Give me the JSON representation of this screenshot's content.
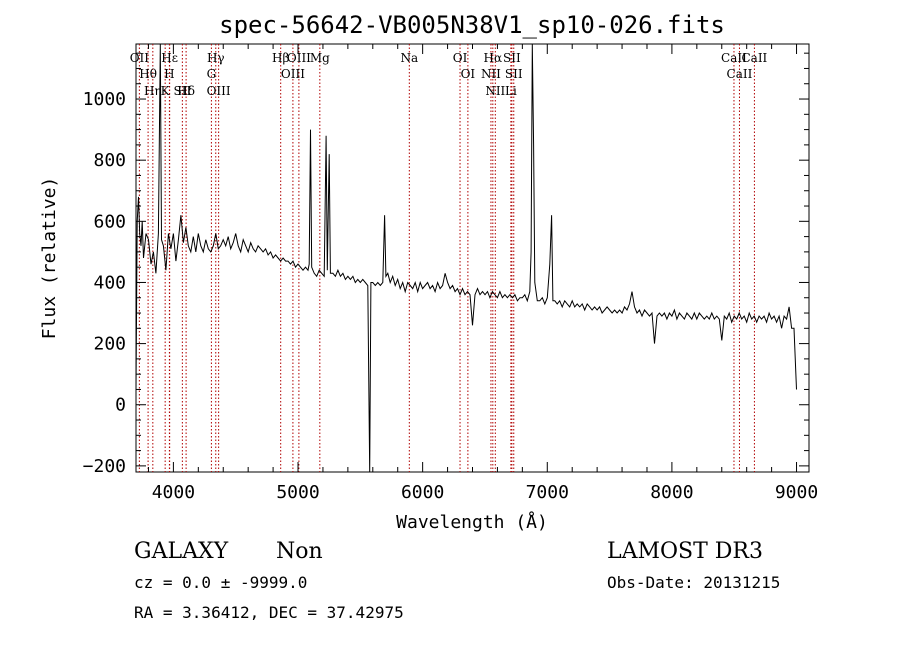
{
  "chart_data": {
    "type": "line",
    "title": "spec-56642-VB005N38V1_sp10-026.fits",
    "xlabel": "Wavelength (Å)",
    "ylabel": "Flux (relative)",
    "xlim": [
      3700,
      9100
    ],
    "ylim": [
      -220,
      1180
    ],
    "xticks": [
      4000,
      5000,
      6000,
      7000,
      8000,
      9000
    ],
    "yticks": [
      -200,
      0,
      200,
      400,
      600,
      800,
      1000
    ],
    "grid": false,
    "spectrum": [
      [
        3700,
        50
      ],
      [
        3710,
        600
      ],
      [
        3720,
        680
      ],
      [
        3730,
        560
      ],
      [
        3740,
        520
      ],
      [
        3750,
        600
      ],
      [
        3760,
        480
      ],
      [
        3780,
        560
      ],
      [
        3800,
        540
      ],
      [
        3820,
        460
      ],
      [
        3840,
        500
      ],
      [
        3860,
        430
      ],
      [
        3880,
        560
      ],
      [
        3895,
        1180
      ],
      [
        3905,
        540
      ],
      [
        3920,
        520
      ],
      [
        3940,
        440
      ],
      [
        3960,
        560
      ],
      [
        3980,
        510
      ],
      [
        4000,
        560
      ],
      [
        4020,
        470
      ],
      [
        4040,
        540
      ],
      [
        4060,
        620
      ],
      [
        4080,
        530
      ],
      [
        4100,
        580
      ],
      [
        4120,
        520
      ],
      [
        4140,
        500
      ],
      [
        4160,
        550
      ],
      [
        4180,
        500
      ],
      [
        4200,
        560
      ],
      [
        4220,
        520
      ],
      [
        4240,
        500
      ],
      [
        4260,
        540
      ],
      [
        4280,
        510
      ],
      [
        4300,
        500
      ],
      [
        4320,
        520
      ],
      [
        4340,
        560
      ],
      [
        4360,
        510
      ],
      [
        4380,
        520
      ],
      [
        4400,
        540
      ],
      [
        4420,
        520
      ],
      [
        4440,
        550
      ],
      [
        4460,
        510
      ],
      [
        4480,
        530
      ],
      [
        4500,
        560
      ],
      [
        4520,
        520
      ],
      [
        4540,
        500
      ],
      [
        4560,
        540
      ],
      [
        4580,
        520
      ],
      [
        4600,
        500
      ],
      [
        4620,
        530
      ],
      [
        4640,
        510
      ],
      [
        4660,
        500
      ],
      [
        4680,
        520
      ],
      [
        4700,
        510
      ],
      [
        4720,
        500
      ],
      [
        4740,
        510
      ],
      [
        4760,
        490
      ],
      [
        4780,
        500
      ],
      [
        4800,
        480
      ],
      [
        4820,
        490
      ],
      [
        4840,
        480
      ],
      [
        4860,
        470
      ],
      [
        4880,
        480
      ],
      [
        4900,
        470
      ],
      [
        4920,
        470
      ],
      [
        4940,
        460
      ],
      [
        4960,
        470
      ],
      [
        4980,
        450
      ],
      [
        5000,
        460
      ],
      [
        5020,
        450
      ],
      [
        5040,
        440
      ],
      [
        5060,
        450
      ],
      [
        5080,
        440
      ],
      [
        5090,
        460
      ],
      [
        5100,
        900
      ],
      [
        5110,
        450
      ],
      [
        5130,
        430
      ],
      [
        5150,
        420
      ],
      [
        5170,
        440
      ],
      [
        5190,
        430
      ],
      [
        5210,
        420
      ],
      [
        5225,
        880
      ],
      [
        5235,
        440
      ],
      [
        5250,
        820
      ],
      [
        5260,
        430
      ],
      [
        5280,
        430
      ],
      [
        5300,
        420
      ],
      [
        5320,
        440
      ],
      [
        5340,
        420
      ],
      [
        5360,
        430
      ],
      [
        5380,
        410
      ],
      [
        5400,
        420
      ],
      [
        5420,
        410
      ],
      [
        5440,
        420
      ],
      [
        5460,
        400
      ],
      [
        5480,
        410
      ],
      [
        5500,
        400
      ],
      [
        5520,
        410
      ],
      [
        5540,
        400
      ],
      [
        5560,
        390
      ],
      [
        5575,
        -220
      ],
      [
        5585,
        400
      ],
      [
        5600,
        400
      ],
      [
        5620,
        390
      ],
      [
        5640,
        400
      ],
      [
        5660,
        390
      ],
      [
        5680,
        400
      ],
      [
        5695,
        620
      ],
      [
        5705,
        420
      ],
      [
        5720,
        430
      ],
      [
        5740,
        400
      ],
      [
        5760,
        420
      ],
      [
        5780,
        390
      ],
      [
        5800,
        410
      ],
      [
        5820,
        380
      ],
      [
        5840,
        400
      ],
      [
        5860,
        370
      ],
      [
        5880,
        400
      ],
      [
        5900,
        390
      ],
      [
        5920,
        380
      ],
      [
        5940,
        400
      ],
      [
        5960,
        370
      ],
      [
        5980,
        400
      ],
      [
        6000,
        380
      ],
      [
        6020,
        390
      ],
      [
        6040,
        400
      ],
      [
        6060,
        380
      ],
      [
        6080,
        390
      ],
      [
        6100,
        370
      ],
      [
        6120,
        400
      ],
      [
        6140,
        380
      ],
      [
        6160,
        390
      ],
      [
        6180,
        430
      ],
      [
        6200,
        400
      ],
      [
        6220,
        380
      ],
      [
        6240,
        390
      ],
      [
        6260,
        370
      ],
      [
        6280,
        380
      ],
      [
        6300,
        360
      ],
      [
        6320,
        380
      ],
      [
        6340,
        360
      ],
      [
        6360,
        370
      ],
      [
        6380,
        360
      ],
      [
        6400,
        260
      ],
      [
        6420,
        360
      ],
      [
        6440,
        380
      ],
      [
        6460,
        360
      ],
      [
        6480,
        370
      ],
      [
        6500,
        360
      ],
      [
        6520,
        370
      ],
      [
        6540,
        350
      ],
      [
        6560,
        370
      ],
      [
        6580,
        360
      ],
      [
        6600,
        350
      ],
      [
        6620,
        370
      ],
      [
        6640,
        350
      ],
      [
        6660,
        360
      ],
      [
        6680,
        350
      ],
      [
        6700,
        360
      ],
      [
        6720,
        350
      ],
      [
        6740,
        360
      ],
      [
        6760,
        340
      ],
      [
        6780,
        350
      ],
      [
        6800,
        350
      ],
      [
        6820,
        360
      ],
      [
        6840,
        340
      ],
      [
        6860,
        370
      ],
      [
        6870,
        500
      ],
      [
        6880,
        1180
      ],
      [
        6890,
        850
      ],
      [
        6900,
        400
      ],
      [
        6920,
        340
      ],
      [
        6940,
        340
      ],
      [
        6960,
        350
      ],
      [
        6980,
        330
      ],
      [
        7000,
        350
      ],
      [
        7020,
        460
      ],
      [
        7035,
        620
      ],
      [
        7045,
        340
      ],
      [
        7060,
        340
      ],
      [
        7080,
        330
      ],
      [
        7100,
        340
      ],
      [
        7120,
        320
      ],
      [
        7140,
        340
      ],
      [
        7160,
        330
      ],
      [
        7180,
        320
      ],
      [
        7200,
        340
      ],
      [
        7220,
        320
      ],
      [
        7240,
        330
      ],
      [
        7260,
        320
      ],
      [
        7280,
        330
      ],
      [
        7300,
        310
      ],
      [
        7320,
        330
      ],
      [
        7340,
        320
      ],
      [
        7360,
        310
      ],
      [
        7380,
        320
      ],
      [
        7400,
        310
      ],
      [
        7420,
        320
      ],
      [
        7440,
        300
      ],
      [
        7460,
        310
      ],
      [
        7480,
        320
      ],
      [
        7500,
        310
      ],
      [
        7520,
        300
      ],
      [
        7540,
        310
      ],
      [
        7560,
        300
      ],
      [
        7580,
        310
      ],
      [
        7600,
        300
      ],
      [
        7620,
        320
      ],
      [
        7640,
        310
      ],
      [
        7660,
        330
      ],
      [
        7680,
        370
      ],
      [
        7700,
        320
      ],
      [
        7720,
        300
      ],
      [
        7740,
        310
      ],
      [
        7760,
        290
      ],
      [
        7780,
        310
      ],
      [
        7800,
        300
      ],
      [
        7820,
        290
      ],
      [
        7840,
        300
      ],
      [
        7860,
        200
      ],
      [
        7880,
        290
      ],
      [
        7900,
        300
      ],
      [
        7920,
        290
      ],
      [
        7940,
        300
      ],
      [
        7960,
        280
      ],
      [
        7980,
        300
      ],
      [
        8000,
        290
      ],
      [
        8020,
        310
      ],
      [
        8040,
        280
      ],
      [
        8060,
        300
      ],
      [
        8080,
        290
      ],
      [
        8100,
        280
      ],
      [
        8120,
        300
      ],
      [
        8140,
        290
      ],
      [
        8160,
        280
      ],
      [
        8180,
        300
      ],
      [
        8200,
        280
      ],
      [
        8220,
        300
      ],
      [
        8240,
        290
      ],
      [
        8260,
        280
      ],
      [
        8280,
        290
      ],
      [
        8300,
        280
      ],
      [
        8320,
        300
      ],
      [
        8340,
        280
      ],
      [
        8360,
        290
      ],
      [
        8380,
        280
      ],
      [
        8400,
        210
      ],
      [
        8420,
        290
      ],
      [
        8440,
        280
      ],
      [
        8460,
        300
      ],
      [
        8480,
        270
      ],
      [
        8500,
        290
      ],
      [
        8520,
        280
      ],
      [
        8540,
        300
      ],
      [
        8560,
        280
      ],
      [
        8580,
        290
      ],
      [
        8600,
        270
      ],
      [
        8620,
        300
      ],
      [
        8640,
        280
      ],
      [
        8660,
        290
      ],
      [
        8680,
        270
      ],
      [
        8700,
        290
      ],
      [
        8720,
        280
      ],
      [
        8740,
        290
      ],
      [
        8760,
        270
      ],
      [
        8780,
        300
      ],
      [
        8800,
        280
      ],
      [
        8820,
        290
      ],
      [
        8840,
        270
      ],
      [
        8860,
        290
      ],
      [
        8880,
        250
      ],
      [
        8900,
        290
      ],
      [
        8920,
        280
      ],
      [
        8940,
        320
      ],
      [
        8960,
        250
      ],
      [
        8980,
        250
      ],
      [
        9000,
        50
      ]
    ],
    "lines": [
      {
        "name": "OII",
        "wl": 3727
      },
      {
        "name": "Hθ",
        "wl": 3797
      },
      {
        "name": "Hη",
        "wl": 3835
      },
      {
        "name": "Hε",
        "wl": 3970
      },
      {
        "name": "K",
        "wl": 3934
      },
      {
        "name": "H",
        "wl": 3968
      },
      {
        "name": "Hδ",
        "wl": 4102
      },
      {
        "name": "SII",
        "wl": 4072
      },
      {
        "name": "Hγ",
        "wl": 4340
      },
      {
        "name": "G",
        "wl": 4305
      },
      {
        "name": "OIII",
        "wl": 4363
      },
      {
        "name": "Hβ",
        "wl": 4861
      },
      {
        "name": "OIII",
        "wl": 4959
      },
      {
        "name": "OIII",
        "wl": 5007
      },
      {
        "name": "Mg",
        "wl": 5175
      },
      {
        "name": "Na",
        "wl": 5893
      },
      {
        "name": "OI",
        "wl": 6300
      },
      {
        "name": "OI",
        "wl": 6363
      },
      {
        "name": "Hα",
        "wl": 6563
      },
      {
        "name": "NII",
        "wl": 6548
      },
      {
        "name": "NII",
        "wl": 6583
      },
      {
        "name": "SII",
        "wl": 6716
      },
      {
        "name": "SII",
        "wl": 6731
      },
      {
        "name": "Li",
        "wl": 6708
      },
      {
        "name": "CaII",
        "wl": 8498
      },
      {
        "name": "CaII",
        "wl": 8542
      },
      {
        "name": "CaII",
        "wl": 8662
      }
    ]
  },
  "info": {
    "class_text": "GALAXY",
    "subclass_text": "Non",
    "cz_text": "cz = 0.0 ± -9999.0",
    "coord_text": "RA =   3.36412, DEC =  37.42975",
    "survey_text": "LAMOST DR3",
    "obsdate_text": "Obs-Date: 20131215"
  }
}
